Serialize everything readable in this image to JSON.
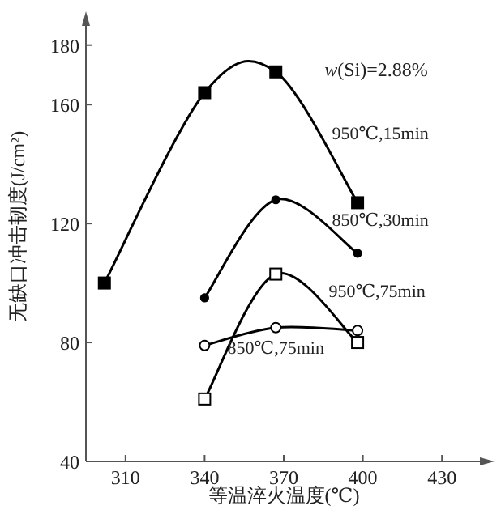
{
  "chart_data": {
    "type": "line",
    "xlabel": "等温淬火温度(℃)",
    "ylabel": "无缺口冲击韧度(J/cm²)",
    "annotations": [
      "w(Si)=2.88%"
    ],
    "xlim": [
      295,
      445
    ],
    "ylim": [
      40,
      187
    ],
    "xticks": [
      310,
      340,
      370,
      400,
      430
    ],
    "yticks": [
      40,
      80,
      120,
      160,
      180
    ],
    "grid": false,
    "series": [
      {
        "name": "950℃,15min",
        "color": "#000000",
        "marker": "square",
        "x": [
          302,
          340,
          367,
          398
        ],
        "values": [
          100,
          164,
          171,
          127
        ]
      },
      {
        "name": "850℃,30min",
        "color": "#000000",
        "marker": "circle",
        "x": [
          340,
          367,
          398
        ],
        "values": [
          95,
          128,
          110
        ]
      },
      {
        "name": "950℃,75min",
        "color": "#000000",
        "marker": "square",
        "x": [
          340,
          367,
          398
        ],
        "values": [
          61,
          103,
          80
        ]
      },
      {
        "name": "850℃,75min",
        "color": "#000000",
        "marker": "circle",
        "x": [
          340,
          367,
          398
        ],
        "values": [
          79,
          85,
          84
        ]
      }
    ]
  }
}
